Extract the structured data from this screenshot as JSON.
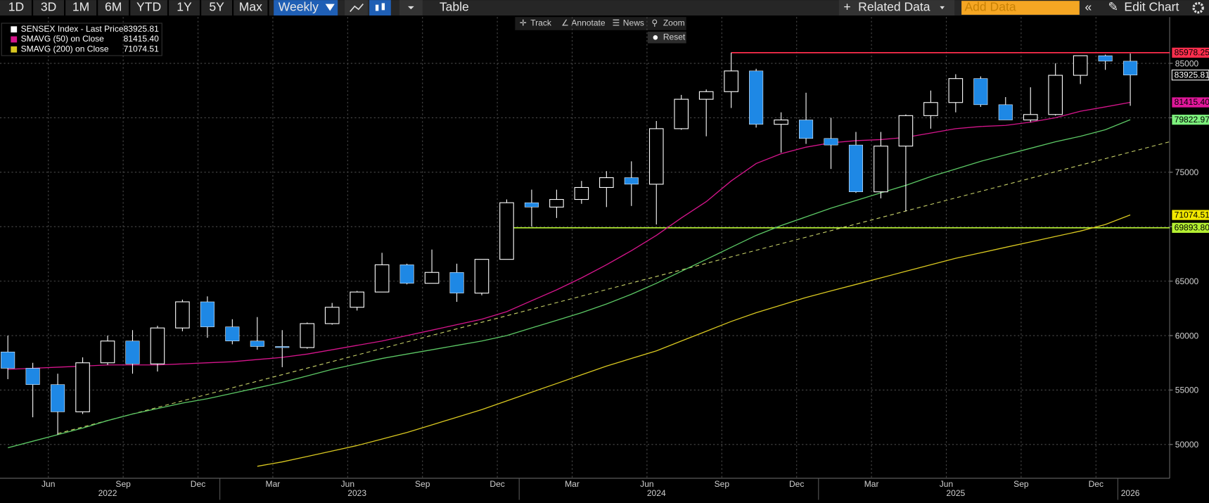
{
  "toolbar": {
    "ranges": [
      "1D",
      "3D",
      "1M",
      "6M",
      "YTD",
      "1Y",
      "5Y",
      "Max"
    ],
    "frequency": "Weekly",
    "table": "Table",
    "related": "Related Data",
    "add_data": "Add Data",
    "edit": "Edit Chart"
  },
  "chart_tools": {
    "track": "Track",
    "annotate": "Annotate",
    "news": "News",
    "zoom": "Zoom",
    "reset": "Reset"
  },
  "chart_data": {
    "type": "candlestick",
    "categories": [
      null,
      null,
      "Jun",
      null,
      null,
      "Sep",
      null,
      null,
      "Dec",
      null,
      null,
      "Mar",
      null,
      null,
      "Jun",
      null,
      null,
      "Sep",
      null,
      null,
      "Dec",
      null,
      null,
      "Mar",
      null,
      null,
      "Jun",
      null,
      null,
      "Sep",
      null,
      null,
      "Dec",
      null,
      null,
      "Mar",
      null,
      null,
      "Jun",
      null,
      null,
      "Sep",
      null,
      null,
      "Dec",
      null
    ],
    "years": [
      null,
      null,
      null,
      null,
      "2022",
      null,
      null,
      null,
      null,
      null,
      null,
      null,
      null,
      null,
      "2023",
      null,
      null,
      null,
      null,
      null,
      null,
      null,
      null,
      null,
      null,
      null,
      "2024",
      null,
      null,
      null,
      null,
      null,
      null,
      null,
      null,
      null,
      null,
      null,
      "2025",
      null,
      null,
      null,
      null,
      null,
      null,
      "2026"
    ],
    "ohlc": {
      "name": "SENSEX Index - Last Price",
      "up_color": "#ffffff",
      "down_color": "#1e88e5",
      "open": [
        58500,
        57000,
        55500,
        53000,
        57500,
        59500,
        57400,
        60700,
        63100,
        60800,
        59500,
        59000,
        58900,
        61100,
        62600,
        64000,
        66500,
        64800,
        65800,
        63900,
        67000,
        72200,
        71800,
        72500,
        73600,
        74500,
        73900,
        79000,
        81700,
        82400,
        84300,
        79400,
        79800,
        78100,
        77500,
        73200,
        77400,
        80200,
        81400,
        83600,
        81200,
        79800,
        80300,
        83900,
        85700,
        85200
      ],
      "high": [
        60000,
        57500,
        56500,
        58000,
        60000,
        60500,
        60900,
        63300,
        63600,
        61500,
        61700,
        60500,
        61200,
        63000,
        64100,
        67600,
        66600,
        67900,
        66600,
        67000,
        72500,
        73400,
        73400,
        74200,
        75100,
        76000,
        79700,
        82100,
        82600,
        85978.25,
        84500,
        80500,
        82300,
        80000,
        78700,
        78700,
        80300,
        82500,
        84000,
        83800,
        81900,
        82800,
        85000,
        85700,
        85800,
        85900
      ],
      "low": [
        56000,
        52500,
        50900,
        52800,
        57300,
        56500,
        56700,
        60400,
        59800,
        59200,
        58700,
        57100,
        58800,
        61000,
        62300,
        64000,
        64700,
        64800,
        63100,
        63700,
        67000,
        70000,
        70800,
        72100,
        71800,
        71900,
        70200,
        78900,
        78300,
        80900,
        79100,
        76800,
        77600,
        75300,
        73100,
        72600,
        71400,
        79000,
        80500,
        81000,
        79800,
        79600,
        80200,
        83100,
        84400,
        81100
      ],
      "close": [
        57000,
        55500,
        53000,
        57500,
        59500,
        57400,
        60700,
        63100,
        60800,
        59500,
        59000,
        58900,
        61100,
        62600,
        64000,
        66500,
        64800,
        65800,
        63900,
        67000,
        72200,
        71800,
        72500,
        73600,
        74500,
        73900,
        79000,
        81700,
        82400,
        84300,
        79400,
        79800,
        78100,
        77500,
        73200,
        77400,
        80200,
        81400,
        83600,
        81200,
        79800,
        80300,
        83900,
        85700,
        85200,
        83925.81
      ]
    },
    "lines": [
      {
        "name": "SMAVG (50)  on Close",
        "color": "#d6158c",
        "values": [
          56900,
          57000,
          57100,
          57200,
          57300,
          57300,
          57300,
          57400,
          57500,
          57600,
          57800,
          58000,
          58300,
          58700,
          59100,
          59500,
          60000,
          60500,
          61000,
          61500,
          62200,
          63200,
          64200,
          65300,
          66500,
          67800,
          69200,
          70800,
          72300,
          74200,
          75800,
          76700,
          77300,
          77700,
          77900,
          78000,
          78200,
          78600,
          79000,
          79200,
          79300,
          79600,
          80000,
          80600,
          81000,
          81415.4
        ]
      },
      {
        "color": "#5cc865",
        "values": [
          49700,
          50300,
          50900,
          51500,
          52200,
          52800,
          53300,
          53800,
          54200,
          54700,
          55200,
          55700,
          56300,
          56900,
          57400,
          57900,
          58300,
          58700,
          59100,
          59500,
          60000,
          60700,
          61400,
          62100,
          62900,
          63800,
          64800,
          65900,
          67000,
          68100,
          69200,
          70100,
          70900,
          71700,
          72400,
          73100,
          73800,
          74600,
          75300,
          76000,
          76600,
          77200,
          77800,
          78300,
          78900,
          79822.97
        ]
      },
      {
        "name": "SMAVG (200)  on Close",
        "color": "#d9c820",
        "values": [
          null,
          null,
          null,
          null,
          null,
          null,
          null,
          null,
          null,
          null,
          48000,
          48400,
          48900,
          49400,
          49900,
          50500,
          51100,
          51800,
          52500,
          53200,
          54000,
          54800,
          55600,
          56400,
          57200,
          57900,
          58600,
          59500,
          60400,
          61300,
          62100,
          62800,
          63500,
          64100,
          64700,
          65300,
          65900,
          66500,
          67100,
          67600,
          68100,
          68600,
          69100,
          69600,
          70200,
          71074.51
        ]
      }
    ],
    "trendline": {
      "values": [
        51000,
        77800
      ],
      "color": "#c9d36a"
    },
    "price_tags": [
      {
        "value": 85978.25,
        "label": "85978.25",
        "color": "#ff2e4d"
      },
      {
        "value": 83925.81,
        "label": "83925.81",
        "color": "#000000"
      },
      {
        "value": 81415.4,
        "label": "81415.40",
        "color": "#e0179a"
      },
      {
        "value": 79822.97,
        "label": "79822.97",
        "color": "#7cf07c"
      },
      {
        "value": 71074.51,
        "label": "71074.51",
        "color": "#f2e800"
      },
      {
        "value": 69893.8,
        "label": "69893.80",
        "color": "#b5f032"
      }
    ],
    "ylim": [
      46900,
      89250
    ],
    "yticks": [
      50000,
      55000,
      60000,
      65000,
      70000,
      75000,
      80000,
      85000
    ],
    "grid": true
  }
}
